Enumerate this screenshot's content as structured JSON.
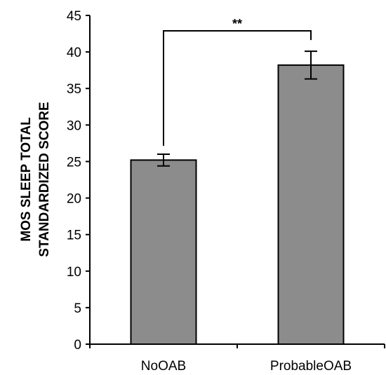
{
  "chart_data": {
    "type": "bar",
    "categories": [
      "NoOAB",
      "ProbableOAB"
    ],
    "values": [
      25.2,
      38.2
    ],
    "error": [
      0.8,
      1.9
    ],
    "ylabel_lines": [
      "MOS SLEEP TOTAL",
      "STANDARDIZED SCORE"
    ],
    "xlabel": "",
    "ylim": [
      0,
      45
    ],
    "yticks": [
      0,
      5,
      10,
      15,
      20,
      25,
      30,
      35,
      40,
      45
    ],
    "significance": {
      "between": [
        0,
        1
      ],
      "label": "**"
    },
    "bar_color": "#8c8c8c",
    "grid": false,
    "legend": false
  }
}
